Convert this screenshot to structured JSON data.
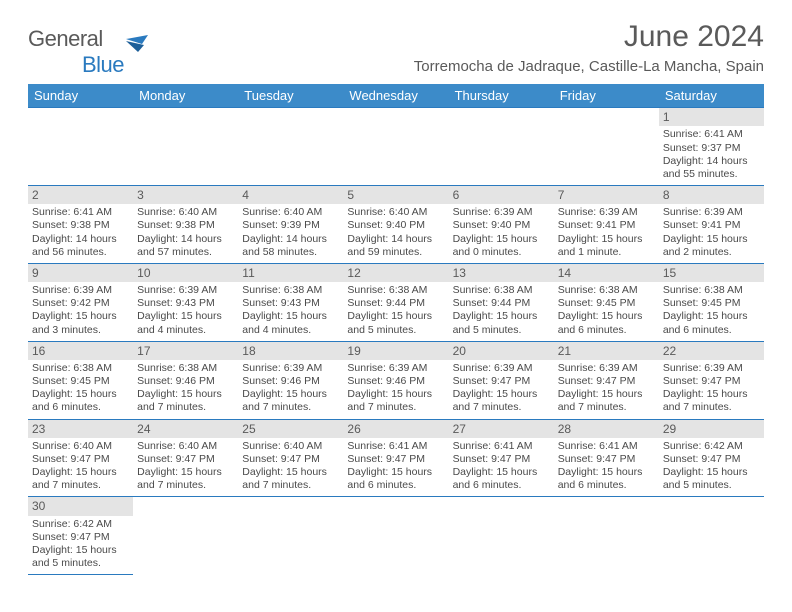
{
  "logo": {
    "textLeft": "General",
    "textRight": "Blue"
  },
  "title": "June 2024",
  "location": "Torremocha de Jadraque, Castille-La Mancha, Spain",
  "colors": {
    "headerBlue": "#3c8bc9",
    "border": "#2a7abf",
    "dayBg": "#e4e4e4",
    "text": "#5a5a5a"
  },
  "daysOfWeek": [
    "Sunday",
    "Monday",
    "Tuesday",
    "Wednesday",
    "Thursday",
    "Friday",
    "Saturday"
  ],
  "weeks": [
    [
      null,
      null,
      null,
      null,
      null,
      null,
      {
        "n": "1",
        "sr": "6:41 AM",
        "ss": "9:37 PM",
        "dl": "14 hours and 55 minutes."
      }
    ],
    [
      {
        "n": "2",
        "sr": "6:41 AM",
        "ss": "9:38 PM",
        "dl": "14 hours and 56 minutes."
      },
      {
        "n": "3",
        "sr": "6:40 AM",
        "ss": "9:38 PM",
        "dl": "14 hours and 57 minutes."
      },
      {
        "n": "4",
        "sr": "6:40 AM",
        "ss": "9:39 PM",
        "dl": "14 hours and 58 minutes."
      },
      {
        "n": "5",
        "sr": "6:40 AM",
        "ss": "9:40 PM",
        "dl": "14 hours and 59 minutes."
      },
      {
        "n": "6",
        "sr": "6:39 AM",
        "ss": "9:40 PM",
        "dl": "15 hours and 0 minutes."
      },
      {
        "n": "7",
        "sr": "6:39 AM",
        "ss": "9:41 PM",
        "dl": "15 hours and 1 minute."
      },
      {
        "n": "8",
        "sr": "6:39 AM",
        "ss": "9:41 PM",
        "dl": "15 hours and 2 minutes."
      }
    ],
    [
      {
        "n": "9",
        "sr": "6:39 AM",
        "ss": "9:42 PM",
        "dl": "15 hours and 3 minutes."
      },
      {
        "n": "10",
        "sr": "6:39 AM",
        "ss": "9:43 PM",
        "dl": "15 hours and 4 minutes."
      },
      {
        "n": "11",
        "sr": "6:38 AM",
        "ss": "9:43 PM",
        "dl": "15 hours and 4 minutes."
      },
      {
        "n": "12",
        "sr": "6:38 AM",
        "ss": "9:44 PM",
        "dl": "15 hours and 5 minutes."
      },
      {
        "n": "13",
        "sr": "6:38 AM",
        "ss": "9:44 PM",
        "dl": "15 hours and 5 minutes."
      },
      {
        "n": "14",
        "sr": "6:38 AM",
        "ss": "9:45 PM",
        "dl": "15 hours and 6 minutes."
      },
      {
        "n": "15",
        "sr": "6:38 AM",
        "ss": "9:45 PM",
        "dl": "15 hours and 6 minutes."
      }
    ],
    [
      {
        "n": "16",
        "sr": "6:38 AM",
        "ss": "9:45 PM",
        "dl": "15 hours and 6 minutes."
      },
      {
        "n": "17",
        "sr": "6:38 AM",
        "ss": "9:46 PM",
        "dl": "15 hours and 7 minutes."
      },
      {
        "n": "18",
        "sr": "6:39 AM",
        "ss": "9:46 PM",
        "dl": "15 hours and 7 minutes."
      },
      {
        "n": "19",
        "sr": "6:39 AM",
        "ss": "9:46 PM",
        "dl": "15 hours and 7 minutes."
      },
      {
        "n": "20",
        "sr": "6:39 AM",
        "ss": "9:47 PM",
        "dl": "15 hours and 7 minutes."
      },
      {
        "n": "21",
        "sr": "6:39 AM",
        "ss": "9:47 PM",
        "dl": "15 hours and 7 minutes."
      },
      {
        "n": "22",
        "sr": "6:39 AM",
        "ss": "9:47 PM",
        "dl": "15 hours and 7 minutes."
      }
    ],
    [
      {
        "n": "23",
        "sr": "6:40 AM",
        "ss": "9:47 PM",
        "dl": "15 hours and 7 minutes."
      },
      {
        "n": "24",
        "sr": "6:40 AM",
        "ss": "9:47 PM",
        "dl": "15 hours and 7 minutes."
      },
      {
        "n": "25",
        "sr": "6:40 AM",
        "ss": "9:47 PM",
        "dl": "15 hours and 7 minutes."
      },
      {
        "n": "26",
        "sr": "6:41 AM",
        "ss": "9:47 PM",
        "dl": "15 hours and 6 minutes."
      },
      {
        "n": "27",
        "sr": "6:41 AM",
        "ss": "9:47 PM",
        "dl": "15 hours and 6 minutes."
      },
      {
        "n": "28",
        "sr": "6:41 AM",
        "ss": "9:47 PM",
        "dl": "15 hours and 6 minutes."
      },
      {
        "n": "29",
        "sr": "6:42 AM",
        "ss": "9:47 PM",
        "dl": "15 hours and 5 minutes."
      }
    ],
    [
      {
        "n": "30",
        "sr": "6:42 AM",
        "ss": "9:47 PM",
        "dl": "15 hours and 5 minutes."
      },
      null,
      null,
      null,
      null,
      null,
      null
    ]
  ],
  "labels": {
    "sunrise": "Sunrise: ",
    "sunset": "Sunset: ",
    "daylight": "Daylight: "
  }
}
